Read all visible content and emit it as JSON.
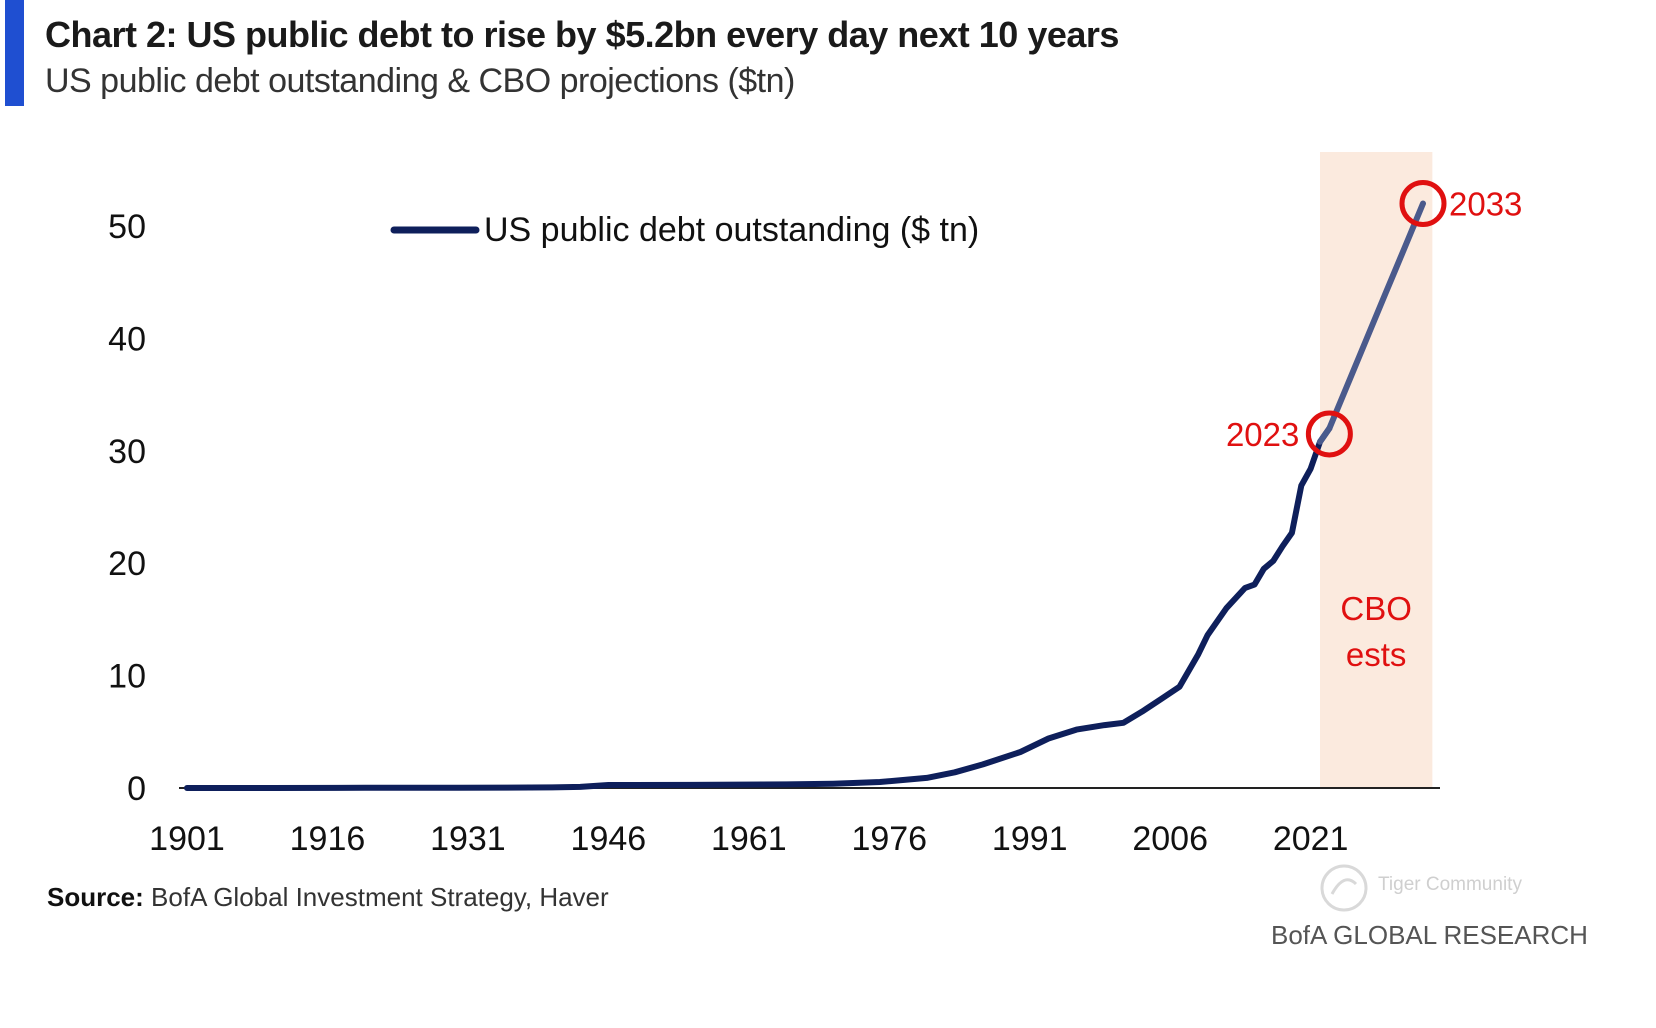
{
  "colors": {
    "accent": "#1f4fd1",
    "line": "#0e1f5b",
    "projection_line": "#4a5a8c",
    "highlight": "#e01010",
    "cbo_band": "#fbeade"
  },
  "header": {
    "title": "Chart 2: US public debt to rise by $5.2bn every day next 10 years",
    "subtitle": "US public debt outstanding & CBO projections ($tn)"
  },
  "footer": {
    "source_label": "Source:",
    "source_text": "BofA Global Investment Strategy, Haver",
    "brand": "BofA GLOBAL RESEARCH",
    "watermark": "Tiger Community"
  },
  "chart_data": {
    "type": "line",
    "title": "US public debt outstanding & CBO projections ($tn)",
    "xlabel": "",
    "ylabel": "",
    "ylim": [
      0,
      50
    ],
    "xlim": [
      1901,
      2033
    ],
    "yticks": [
      "0",
      "10",
      "20",
      "30",
      "40",
      "50"
    ],
    "xticks": [
      "1901",
      "1916",
      "1931",
      "1946",
      "1961",
      "1976",
      "1991",
      "2006",
      "2021"
    ],
    "legend": "top-left",
    "series": [
      {
        "name": "US public debt outstanding ($ tn)",
        "x": [
          1901,
          1910,
          1917,
          1920,
          1930,
          1940,
          1943,
          1946,
          1955,
          1965,
          1970,
          1975,
          1980,
          1983,
          1986,
          1990,
          1993,
          1996,
          1999,
          2001,
          2003,
          2005,
          2007,
          2009,
          2010,
          2012,
          2014,
          2015,
          2016,
          2017,
          2018,
          2019,
          2020,
          2021,
          2022,
          2023,
          2025,
          2027,
          2029,
          2031,
          2033
        ],
        "y": [
          0.0,
          0.0,
          0.01,
          0.02,
          0.02,
          0.05,
          0.1,
          0.27,
          0.28,
          0.32,
          0.38,
          0.53,
          0.9,
          1.4,
          2.1,
          3.2,
          4.4,
          5.2,
          5.6,
          5.8,
          6.8,
          7.9,
          9.0,
          11.9,
          13.6,
          16.0,
          17.8,
          18.1,
          19.5,
          20.2,
          21.5,
          22.7,
          26.9,
          28.4,
          30.8,
          32.0,
          36.0,
          40.0,
          44.0,
          48.0,
          52.0
        ]
      }
    ],
    "projection_region": {
      "from": 2022,
      "to": 2034,
      "label_line1": "CBO",
      "label_line2": "ests"
    },
    "annotations": [
      {
        "x": 2023,
        "y": 31.5,
        "label": "2023",
        "label_side": "left"
      },
      {
        "x": 2033,
        "y": 52.0,
        "label": "2033",
        "label_side": "right"
      }
    ]
  }
}
